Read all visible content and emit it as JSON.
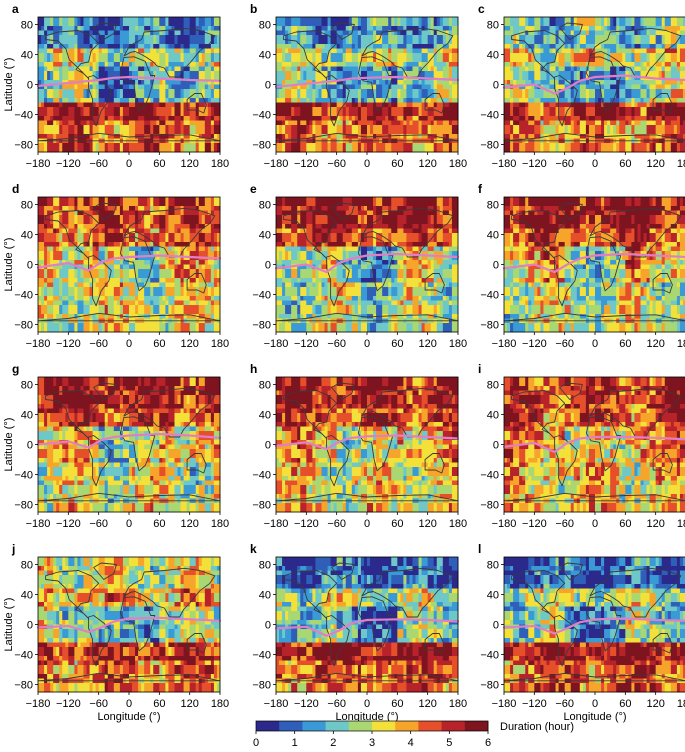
{
  "chart_data": {
    "type": "heatmap",
    "panels": [
      "a",
      "b",
      "c",
      "d",
      "e",
      "f",
      "g",
      "h",
      "i",
      "j",
      "k",
      "l"
    ],
    "x_ticks": [
      -180,
      -120,
      -60,
      0,
      60,
      120,
      180
    ],
    "y_ticks": [
      80,
      40,
      0,
      -40,
      -80
    ],
    "xlim": [
      -180,
      180
    ],
    "ylim": [
      -90,
      90
    ],
    "xlabel": "Longitude (°)",
    "ylabel": "Latitude (°)",
    "colorbar": {
      "label": "Duration (hour)",
      "ticks": [
        0,
        1,
        2,
        3,
        4,
        5,
        6
      ],
      "range": [
        0,
        6
      ],
      "colors": [
        "#2b2a8c",
        "#2f5fb8",
        "#3a9ad6",
        "#6fc8c8",
        "#a9d873",
        "#f3e13a",
        "#f7a52a",
        "#e5502b",
        "#b8232b",
        "#7d1420"
      ]
    },
    "overlay_line_color": "#e07fc6",
    "coastline_color": "#3a3a3a"
  }
}
